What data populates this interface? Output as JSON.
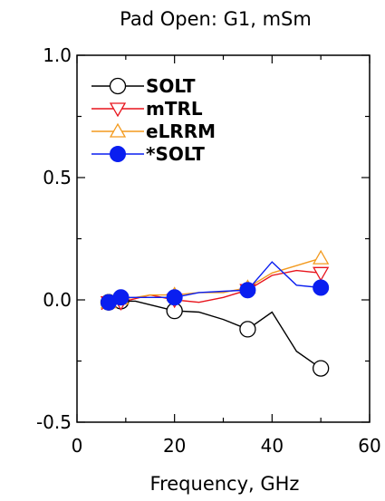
{
  "chart_data": {
    "type": "line",
    "title": "Pad Open: G1, mSm",
    "xlabel": "Frequency, GHz",
    "ylabel": "",
    "xlim": [
      0,
      60
    ],
    "ylim": [
      -0.5,
      1.0
    ],
    "x_ticks": [
      0,
      20,
      40,
      60
    ],
    "x_tick_labels": [
      "0",
      "20",
      "40",
      "60"
    ],
    "y_ticks": [
      -0.5,
      0.0,
      0.5,
      1.0
    ],
    "y_tick_labels": [
      "-0.5",
      "0.0",
      "0.5",
      "1.0"
    ],
    "grid": false,
    "legend_position": "top-left",
    "series": [
      {
        "name": "SOLT",
        "color": "#000000",
        "marker": "circle-open",
        "x": [
          5,
          6.5,
          9,
          12,
          15,
          20,
          25,
          30,
          35,
          40,
          45,
          50
        ],
        "y": [
          -0.01,
          -0.01,
          -0.005,
          -0.005,
          -0.02,
          -0.045,
          -0.05,
          -0.08,
          -0.12,
          -0.05,
          -0.21,
          -0.28
        ],
        "marker_x": [
          6.5,
          9,
          20,
          35,
          50
        ],
        "marker_y": [
          -0.01,
          -0.005,
          -0.045,
          -0.12,
          -0.28
        ]
      },
      {
        "name": "mTRL",
        "color": "#e8141c",
        "marker": "triangle-down-open",
        "x": [
          5,
          6.5,
          9,
          12,
          15,
          20,
          25,
          30,
          35,
          40,
          45,
          50
        ],
        "y": [
          -0.04,
          -0.01,
          -0.01,
          0.005,
          0.02,
          0.0,
          -0.01,
          0.01,
          0.04,
          0.1,
          0.12,
          0.11
        ],
        "marker_x": [
          6.5,
          9,
          20,
          35,
          50
        ],
        "marker_y": [
          -0.01,
          -0.01,
          0.0,
          0.04,
          0.11
        ]
      },
      {
        "name": "eLRRM",
        "color": "#f39a1e",
        "marker": "triangle-up-open",
        "x": [
          5,
          6.5,
          9,
          12,
          15,
          20,
          25,
          30,
          35,
          40,
          45,
          50
        ],
        "y": [
          -0.02,
          -0.01,
          0.005,
          0.01,
          0.02,
          0.02,
          0.03,
          0.03,
          0.05,
          0.11,
          0.14,
          0.17
        ],
        "marker_x": [
          6.5,
          9,
          20,
          35,
          50
        ],
        "marker_y": [
          -0.01,
          0.005,
          0.02,
          0.05,
          0.17
        ]
      },
      {
        "name": "*SOLT",
        "color": "#0a1ef0",
        "marker": "circle-filled",
        "x": [
          5,
          6.5,
          9,
          12,
          15,
          20,
          25,
          30,
          35,
          40,
          45,
          50
        ],
        "y": [
          -0.01,
          -0.01,
          0.01,
          0.01,
          0.01,
          0.01,
          0.03,
          0.035,
          0.04,
          0.155,
          0.06,
          0.05
        ],
        "marker_x": [
          6.5,
          9,
          20,
          35,
          50
        ],
        "marker_y": [
          -0.01,
          0.01,
          0.01,
          0.04,
          0.05
        ]
      }
    ]
  }
}
